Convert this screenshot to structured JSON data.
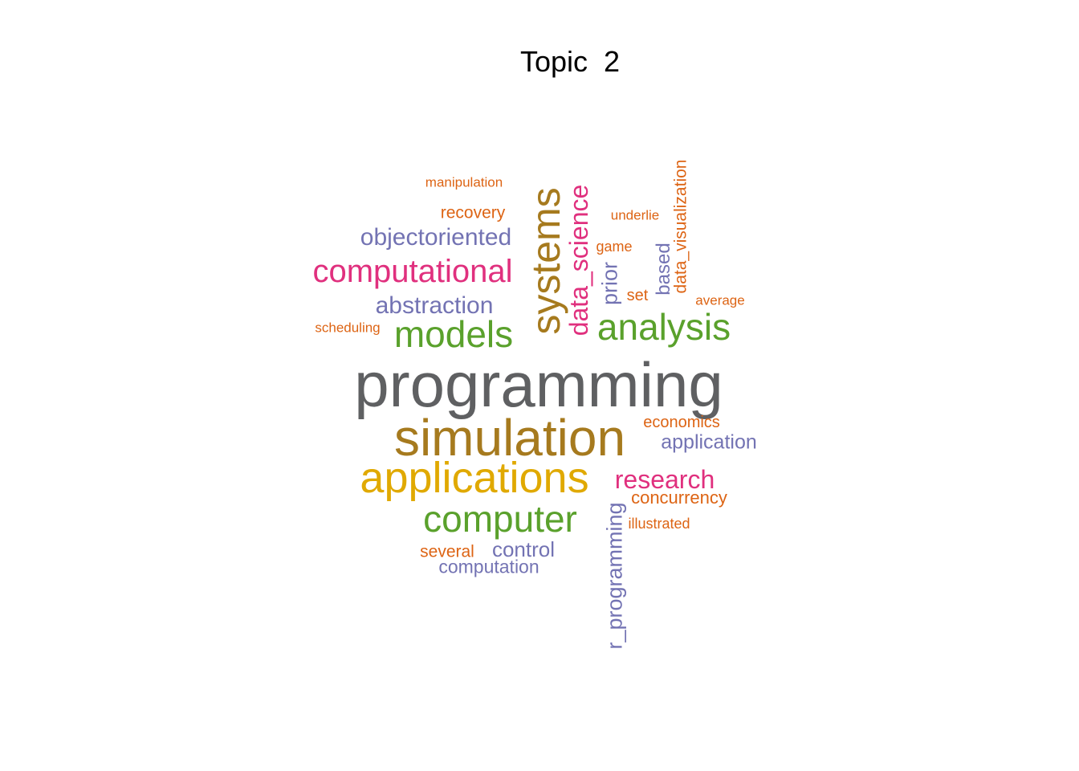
{
  "title": "Topic  2",
  "colors": {
    "gray": "#5f6062",
    "brown": "#a67a1e",
    "gold": "#e0a900",
    "green": "#5aa12c",
    "pink": "#e0307e",
    "purple": "#7373b3",
    "orange": "#dd6414"
  },
  "words": [
    {
      "text": "programming",
      "color": "gray"
    },
    {
      "text": "simulation",
      "color": "brown"
    },
    {
      "text": "applications",
      "color": "gold"
    },
    {
      "text": "systems",
      "color": "brown"
    },
    {
      "text": "computer",
      "color": "green"
    },
    {
      "text": "models",
      "color": "green"
    },
    {
      "text": "analysis",
      "color": "green"
    },
    {
      "text": "computational",
      "color": "pink"
    },
    {
      "text": "data_science",
      "color": "pink"
    },
    {
      "text": "research",
      "color": "pink"
    },
    {
      "text": "objectoriented",
      "color": "purple"
    },
    {
      "text": "abstraction",
      "color": "purple"
    },
    {
      "text": "r_programming",
      "color": "purple"
    },
    {
      "text": "prior",
      "color": "purple"
    },
    {
      "text": "based",
      "color": "purple"
    },
    {
      "text": "application",
      "color": "purple"
    },
    {
      "text": "control",
      "color": "purple"
    },
    {
      "text": "computation",
      "color": "purple"
    },
    {
      "text": "data_visualization",
      "color": "orange"
    },
    {
      "text": "concurrency",
      "color": "orange"
    },
    {
      "text": "economics",
      "color": "orange"
    },
    {
      "text": "several",
      "color": "orange"
    },
    {
      "text": "recovery",
      "color": "orange"
    },
    {
      "text": "manipulation",
      "color": "orange"
    },
    {
      "text": "underlie",
      "color": "orange"
    },
    {
      "text": "game",
      "color": "orange"
    },
    {
      "text": "set",
      "color": "orange"
    },
    {
      "text": "average",
      "color": "orange"
    },
    {
      "text": "scheduling",
      "color": "orange"
    },
    {
      "text": "illustrated",
      "color": "orange"
    }
  ]
}
